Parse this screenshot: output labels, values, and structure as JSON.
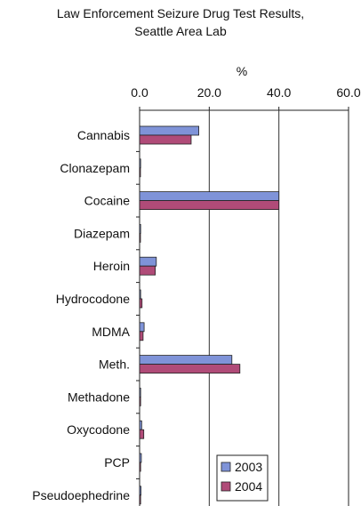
{
  "chart_data": {
    "type": "bar",
    "orientation": "horizontal",
    "title": "Law Enforcement Seizure Drug Test Results,",
    "subtitle": "Seattle Area Lab",
    "xlabel": "%",
    "ylabel": "",
    "xlim": [
      0,
      60
    ],
    "xticks": [
      "0.0",
      "20.0",
      "40.0",
      "60.0"
    ],
    "categories": [
      "Cannabis",
      "Clonazepam",
      "Cocaine",
      "Diazepam",
      "Heroin",
      "Hydrocodone",
      "MDMA",
      "Meth.",
      "Methadone",
      "Oxycodone",
      "PCP",
      "Pseudoephedrine"
    ],
    "series": [
      {
        "name": "2003",
        "color": "#7f93d8",
        "values": [
          17.0,
          0.3,
          40.0,
          0.3,
          4.8,
          0.3,
          1.3,
          26.5,
          0.3,
          0.6,
          0.5,
          0.4
        ]
      },
      {
        "name": "2004",
        "color": "#b04b78",
        "values": [
          14.8,
          0.2,
          40.0,
          0.2,
          4.5,
          0.7,
          1.0,
          28.8,
          0.3,
          1.2,
          0.3,
          0.3
        ]
      }
    ],
    "grid": "vertical",
    "legend": "bottom-right"
  }
}
